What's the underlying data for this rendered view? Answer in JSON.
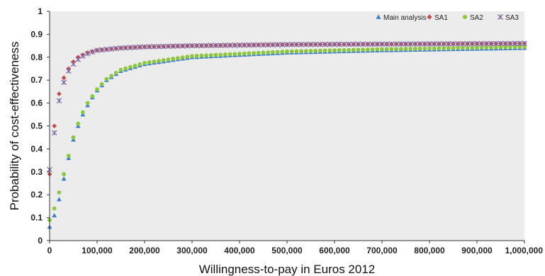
{
  "chart_data": {
    "type": "scatter",
    "title": "",
    "xlabel": "Willingness-to-pay in Euros 2012",
    "ylabel": "Probability of cost-effectiveness",
    "xlim": [
      0,
      1000000
    ],
    "ylim": [
      0,
      1
    ],
    "x_ticks": [
      0,
      100000,
      200000,
      300000,
      400000,
      500000,
      600000,
      700000,
      800000,
      900000,
      1000000
    ],
    "x_tick_labels": [
      "0",
      "100,000",
      "200,000",
      "300,000",
      "400,000",
      "500,000",
      "600,000",
      "700,000",
      "800,000",
      "900,000",
      "1,000,000"
    ],
    "y_ticks": [
      0,
      0.1,
      0.2,
      0.3,
      0.4,
      0.5,
      0.6,
      0.7,
      0.8,
      0.9,
      1
    ],
    "y_tick_labels": [
      "0",
      "0.1",
      "0.2",
      "0.3",
      "0.4",
      "0.5",
      "0.6",
      "0.7",
      "0.8",
      "0.9",
      "1"
    ],
    "grid": false,
    "legend_position": "top-right",
    "x_step": 10000,
    "series": [
      {
        "name": "Main analysis",
        "marker": "triangle",
        "color": "#3a7fc6",
        "anchors": [
          [
            0,
            0.06
          ],
          [
            10000,
            0.11
          ],
          [
            20000,
            0.18
          ],
          [
            30000,
            0.27
          ],
          [
            40000,
            0.36
          ],
          [
            50000,
            0.44
          ],
          [
            60000,
            0.5
          ],
          [
            70000,
            0.55
          ],
          [
            80000,
            0.59
          ],
          [
            90000,
            0.625
          ],
          [
            100000,
            0.655
          ],
          [
            120000,
            0.7
          ],
          [
            150000,
            0.74
          ],
          [
            200000,
            0.77
          ],
          [
            300000,
            0.8
          ],
          [
            400000,
            0.81
          ],
          [
            500000,
            0.82
          ],
          [
            700000,
            0.83
          ],
          [
            1000000,
            0.84
          ]
        ]
      },
      {
        "name": "SA1",
        "marker": "diamond",
        "color": "#c0504d",
        "anchors": [
          [
            0,
            0.29
          ],
          [
            10000,
            0.5
          ],
          [
            20000,
            0.64
          ],
          [
            30000,
            0.71
          ],
          [
            40000,
            0.75
          ],
          [
            50000,
            0.78
          ],
          [
            60000,
            0.8
          ],
          [
            70000,
            0.81
          ],
          [
            80000,
            0.82
          ],
          [
            100000,
            0.83
          ],
          [
            150000,
            0.84
          ],
          [
            200000,
            0.845
          ],
          [
            300000,
            0.85
          ],
          [
            500000,
            0.855
          ],
          [
            1000000,
            0.86
          ]
        ]
      },
      {
        "name": "SA2",
        "marker": "circle",
        "color": "#8dc63f",
        "anchors": [
          [
            0,
            0.09
          ],
          [
            10000,
            0.14
          ],
          [
            20000,
            0.21
          ],
          [
            30000,
            0.29
          ],
          [
            40000,
            0.37
          ],
          [
            50000,
            0.45
          ],
          [
            60000,
            0.51
          ],
          [
            70000,
            0.56
          ],
          [
            80000,
            0.6
          ],
          [
            90000,
            0.63
          ],
          [
            100000,
            0.66
          ],
          [
            120000,
            0.705
          ],
          [
            150000,
            0.745
          ],
          [
            200000,
            0.775
          ],
          [
            300000,
            0.805
          ],
          [
            400000,
            0.815
          ],
          [
            500000,
            0.825
          ],
          [
            700000,
            0.835
          ],
          [
            1000000,
            0.845
          ]
        ]
      },
      {
        "name": "SA3",
        "marker": "x",
        "color": "#8064a2",
        "anchors": [
          [
            0,
            0.31
          ],
          [
            10000,
            0.47
          ],
          [
            20000,
            0.61
          ],
          [
            30000,
            0.69
          ],
          [
            40000,
            0.74
          ],
          [
            50000,
            0.77
          ],
          [
            60000,
            0.79
          ],
          [
            70000,
            0.805
          ],
          [
            80000,
            0.815
          ],
          [
            100000,
            0.83
          ],
          [
            150000,
            0.84
          ],
          [
            200000,
            0.845
          ],
          [
            300000,
            0.85
          ],
          [
            500000,
            0.855
          ],
          [
            1000000,
            0.86
          ]
        ]
      }
    ]
  }
}
